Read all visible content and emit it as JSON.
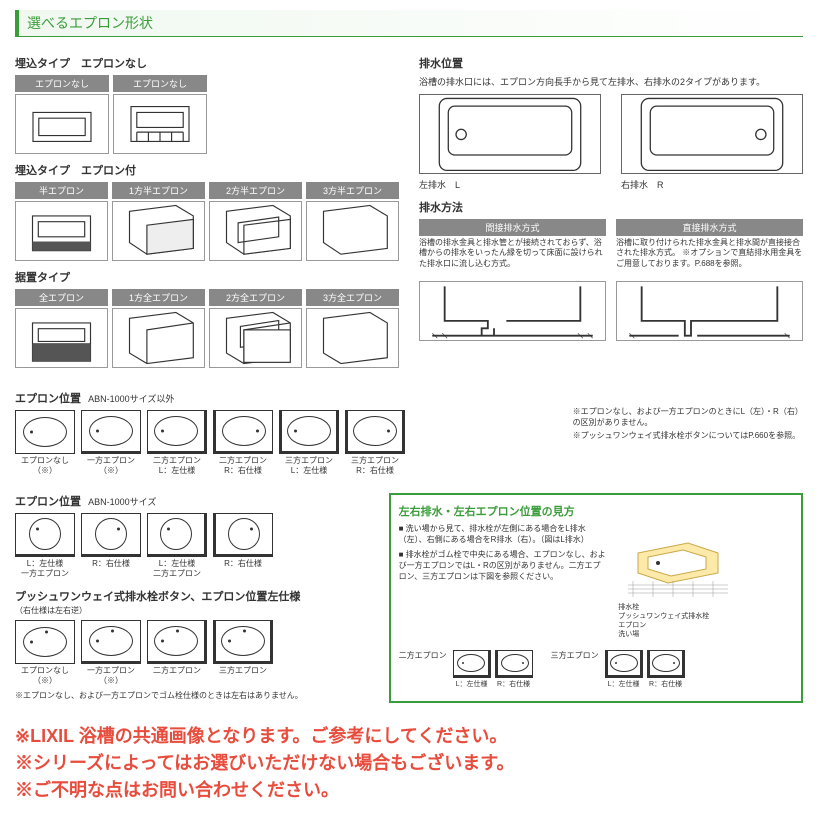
{
  "colors": {
    "green": "#3a9d3a",
    "gray": "#888888",
    "red": "#e84c3d"
  },
  "header": "選べるエプロン形状",
  "embed_no_apron": {
    "title": "埋込タイプ　エプロンなし",
    "labels": [
      "エプロンなし",
      "エプロンなし"
    ]
  },
  "embed_with_apron": {
    "title": "埋込タイプ　エプロン付",
    "labels": [
      "半エプロン",
      "1方半エプロン",
      "2方半エプロン",
      "3方半エプロン"
    ]
  },
  "standing": {
    "title": "据置タイプ",
    "labels": [
      "全エプロン",
      "1方全エプロン",
      "2方全エプロン",
      "3方全エプロン"
    ]
  },
  "apron_pos1": {
    "title": "エプロン位置",
    "subtitle": "ABN-1000サイズ以外",
    "items": [
      {
        "caption": "エプロンなし（※）"
      },
      {
        "caption": "一方エプロン（※）"
      },
      {
        "caption": "二方エプロン\nL：左仕様"
      },
      {
        "caption": "二方エプロン\nR：右仕様"
      },
      {
        "caption": "三方エプロン\nL：左仕様"
      },
      {
        "caption": "三方エプロン\nR：右仕様"
      }
    ],
    "notes": [
      "※エプロンなし、および一方エプロンのときにL（左）・R（右）の区別がありません。",
      "※プッシュワンウェイ式排水栓ボタンについてはP.660を参照。"
    ]
  },
  "apron_pos2": {
    "title": "エプロン位置",
    "subtitle": "ABN-1000サイズ",
    "items": [
      {
        "caption": "L：左仕様\n一方エプロン"
      },
      {
        "caption": "R：右仕様"
      },
      {
        "caption": "L：左仕様\n二方エプロン"
      },
      {
        "caption": "R：右仕様"
      }
    ]
  },
  "push_button": {
    "title": "プッシュワンウェイ式排水栓ボタン、エプロン位置左仕様",
    "title_note": "（右仕様は左右逆）",
    "items": [
      {
        "caption": "エプロンなし（※）"
      },
      {
        "caption": "一方エプロン（※）"
      },
      {
        "caption": "二方エプロン"
      },
      {
        "caption": "三方エプロン"
      }
    ],
    "note": "※エプロンなし、および一方エプロンでゴム栓仕様のときは左右はありません。"
  },
  "drain_pos": {
    "title": "排水位置",
    "desc": "浴槽の排水口には、エプロン方向長手から見て左排水、右排水の2タイプがあります。",
    "items": [
      {
        "caption": "左排水　L"
      },
      {
        "caption": "右排水　R"
      }
    ]
  },
  "drain_method": {
    "title": "排水方法",
    "cols": [
      {
        "label": "間接排水方式",
        "text": "浴槽の排水金具と排水管とが接続されておらず、浴槽からの排水をいったん縁を切って床面に設けられた排水口に流し込む方式。"
      },
      {
        "label": "直接排水方式",
        "text": "浴槽に取り付けられた排水金具と排水間が直接接合された排水方式。\n※オプションで直結排水用金具をご用意しております。P.688を参照。"
      }
    ]
  },
  "green_box": {
    "title": "左右排水・左右エプロン位置の見方",
    "bullets": [
      "洗い場から見て、排水栓が左側にある場合をL排水（左）、右側にある場合をR排水（右）。（図はL排水）",
      "排水栓がゴム栓で中央にある場合、エプロンなし、および一方エプロンではL・Rの区別がありません。二方エプロン、三方エプロンは下図を参照ください。"
    ],
    "legend": [
      "排水栓",
      "プッシュワンウェイ式排水栓",
      "エプロン",
      "洗い場"
    ],
    "rows": [
      {
        "label": "二方エプロン",
        "items": [
          {
            "cap": "L：左仕様"
          },
          {
            "cap": "R：右仕様"
          }
        ]
      },
      {
        "label": "三方エプロン",
        "items": [
          {
            "cap": "L：左仕様"
          },
          {
            "cap": "R：右仕様"
          }
        ]
      }
    ]
  },
  "footer": [
    "※LIXIL 浴槽の共通画像となります。ご参考にしてください。",
    "※シリーズによってはお選びいただけない場合もございます。",
    "※ご不明な点はお問い合わせください。"
  ]
}
